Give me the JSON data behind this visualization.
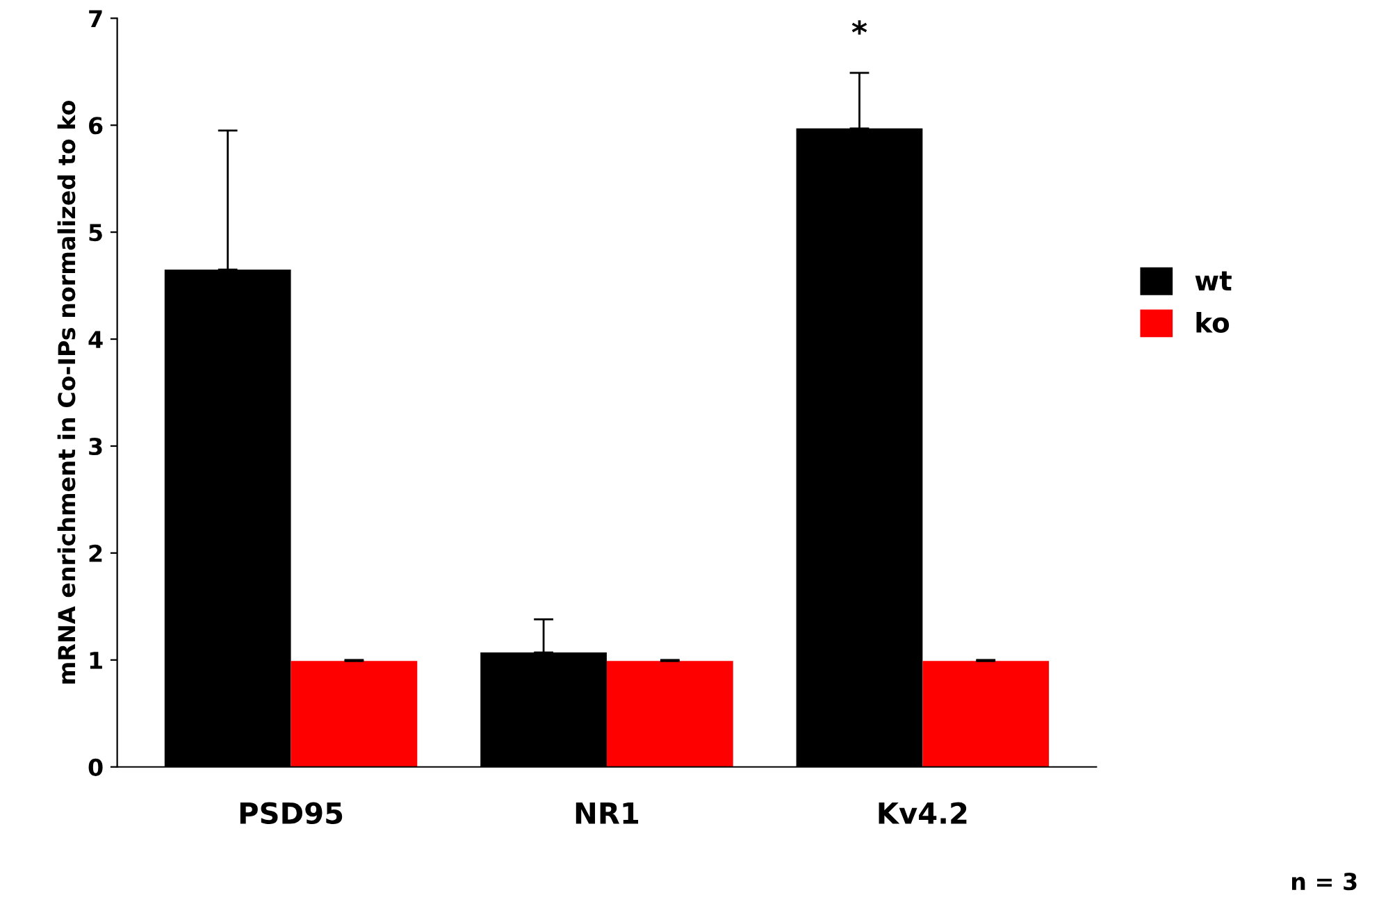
{
  "chart_data": {
    "type": "bar",
    "ylabel": "mRNA enrichment in Co-IPs normalized to ko",
    "categories": [
      "PSD95",
      "NR1",
      "Kv4.2"
    ],
    "series": [
      {
        "name": "wt",
        "color": "#000000",
        "values": [
          4.65,
          1.07,
          5.97
        ],
        "errors": [
          1.3,
          0.31,
          0.52
        ]
      },
      {
        "name": "ko",
        "color": "#ff0000",
        "values": [
          0.99,
          0.99,
          0.99
        ],
        "errors": [
          0.01,
          0.01,
          0.01
        ]
      }
    ],
    "ylim": [
      0,
      7
    ],
    "yticks": [
      0,
      1,
      2,
      3,
      4,
      5,
      6,
      7
    ],
    "grid": false,
    "legend": "right",
    "annotations": [
      "*",
      "n = 3"
    ]
  }
}
